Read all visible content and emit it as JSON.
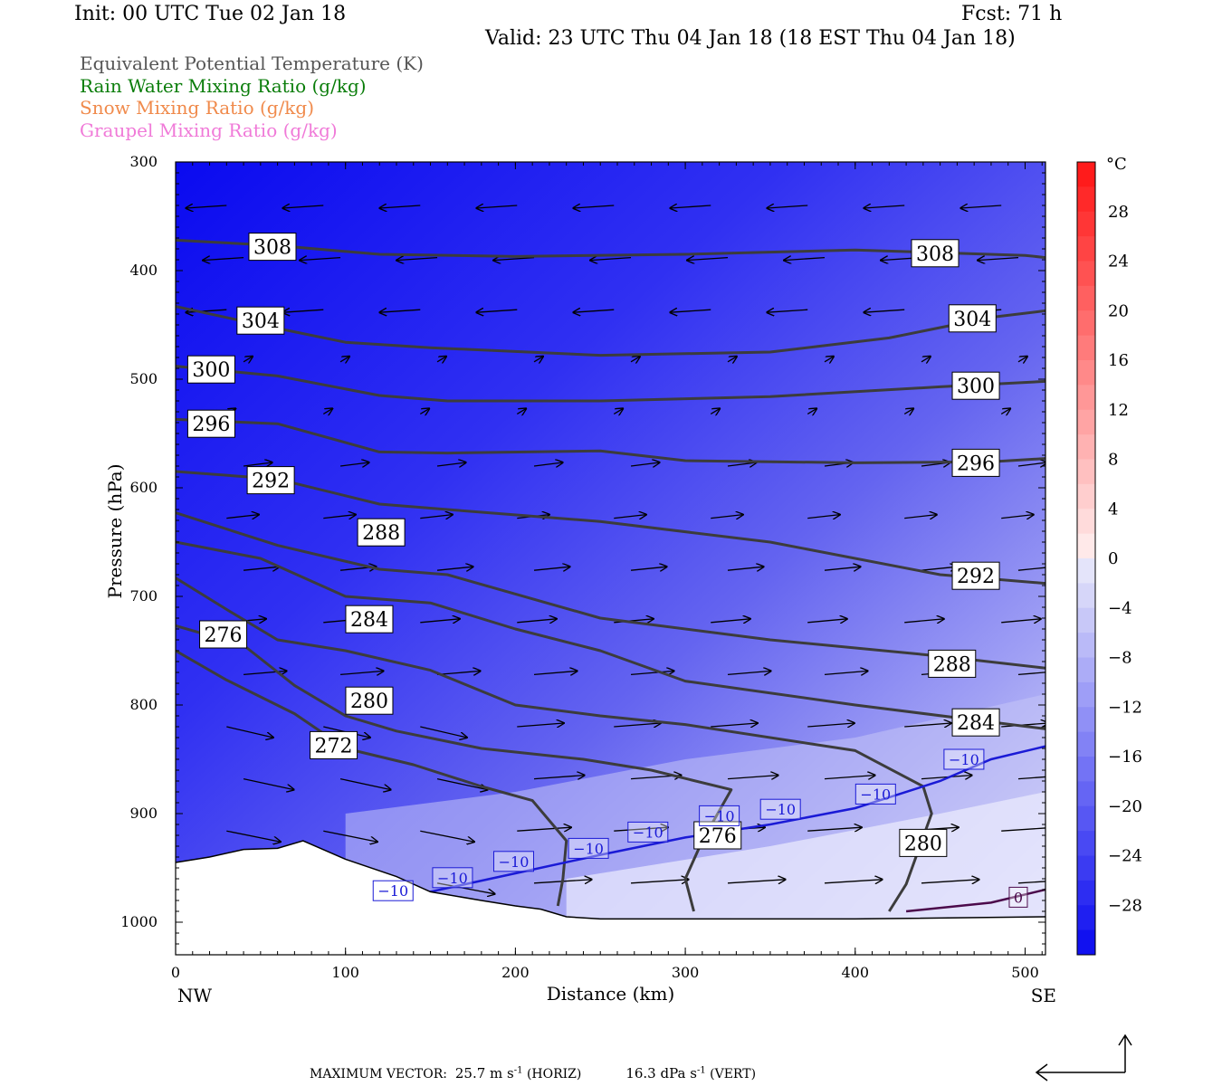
{
  "header": {
    "init": "Init: 00 UTC Tue 02 Jan 18",
    "fcst": "Fcst:   71 h",
    "valid": "Valid: 23 UTC Thu 04 Jan 18 (18 EST Thu 04 Jan 18)"
  },
  "legend": [
    {
      "label": "Equivalent Potential Temperature (K)",
      "color": "#555555"
    },
    {
      "label": "Rain Water Mixing Ratio (g/kg)",
      "color": "#0a7d0a"
    },
    {
      "label": "Snow Mixing Ratio (g/kg)",
      "color": "#f08a4b"
    },
    {
      "label": "Graupel Mixing Ratio (g/kg)",
      "color": "#f07ad8"
    }
  ],
  "chart_data": {
    "type": "heatmap",
    "xlabel": "Distance (km)",
    "ylabel": "Pressure (hPa)",
    "xlim": [
      0,
      512
    ],
    "ylim": [
      1030,
      300
    ],
    "x_ticks": [
      0,
      100,
      200,
      300,
      400,
      500
    ],
    "y_ticks": [
      300,
      400,
      500,
      600,
      700,
      800,
      900,
      1000
    ],
    "left_end_label": "NW",
    "right_end_label": "SE",
    "colorbar": {
      "unit": "°C",
      "ticks": [
        28,
        24,
        20,
        16,
        12,
        8,
        4,
        0,
        -4,
        -8,
        -12,
        -16,
        -20,
        -24,
        -28
      ],
      "range": [
        -32,
        32
      ]
    },
    "theta_e_contours": [
      {
        "value": 308,
        "points": [
          [
            0,
            372
          ],
          [
            60,
            377
          ],
          [
            120,
            385
          ],
          [
            200,
            387
          ],
          [
            300,
            385
          ],
          [
            400,
            381
          ],
          [
            500,
            386
          ],
          [
            512,
            388
          ]
        ]
      },
      {
        "value": 304,
        "points": [
          [
            0,
            433
          ],
          [
            50,
            450
          ],
          [
            100,
            466
          ],
          [
            150,
            471
          ],
          [
            250,
            478
          ],
          [
            350,
            475
          ],
          [
            420,
            462
          ],
          [
            480,
            443
          ],
          [
            512,
            437
          ]
        ]
      },
      {
        "value": 300,
        "points": [
          [
            0,
            488
          ],
          [
            60,
            497
          ],
          [
            120,
            515
          ],
          [
            160,
            520
          ],
          [
            250,
            520
          ],
          [
            350,
            516
          ],
          [
            450,
            507
          ],
          [
            512,
            502
          ]
        ]
      },
      {
        "value": 296,
        "points": [
          [
            0,
            537
          ],
          [
            60,
            541
          ],
          [
            120,
            567
          ],
          [
            160,
            568
          ],
          [
            250,
            566
          ],
          [
            300,
            575
          ],
          [
            400,
            577
          ],
          [
            480,
            576
          ],
          [
            512,
            573
          ]
        ]
      },
      {
        "value": 292,
        "points": [
          [
            0,
            585
          ],
          [
            60,
            592
          ],
          [
            120,
            615
          ],
          [
            160,
            620
          ],
          [
            250,
            631
          ],
          [
            350,
            650
          ],
          [
            450,
            680
          ],
          [
            512,
            688
          ]
        ]
      },
      {
        "value": 288,
        "points": [
          [
            0,
            623
          ],
          [
            60,
            653
          ],
          [
            120,
            675
          ],
          [
            160,
            680
          ],
          [
            250,
            720
          ],
          [
            350,
            740
          ],
          [
            450,
            755
          ],
          [
            512,
            766
          ]
        ]
      },
      {
        "value": 284,
        "points": [
          [
            0,
            650
          ],
          [
            50,
            665
          ],
          [
            100,
            700
          ],
          [
            150,
            706
          ],
          [
            200,
            730
          ],
          [
            250,
            750
          ],
          [
            300,
            778
          ],
          [
            400,
            800
          ],
          [
            512,
            822
          ]
        ]
      },
      {
        "value": 280,
        "points": [
          [
            0,
            683
          ],
          [
            30,
            712
          ],
          [
            60,
            740
          ],
          [
            100,
            750
          ],
          [
            150,
            768
          ],
          [
            200,
            800
          ],
          [
            250,
            810
          ],
          [
            300,
            818
          ],
          [
            400,
            842
          ],
          [
            440,
            875
          ],
          [
            445,
            900
          ],
          [
            430,
            965
          ],
          [
            420,
            990
          ]
        ]
      },
      {
        "value": 276,
        "points": [
          [
            0,
            727
          ],
          [
            40,
            745
          ],
          [
            70,
            782
          ],
          [
            100,
            810
          ],
          [
            130,
            824
          ],
          [
            180,
            840
          ],
          [
            240,
            850
          ],
          [
            280,
            860
          ],
          [
            327,
            878
          ],
          [
            310,
            925
          ],
          [
            300,
            960
          ],
          [
            305,
            990
          ]
        ]
      },
      {
        "value": 272,
        "points": [
          [
            0,
            750
          ],
          [
            30,
            777
          ],
          [
            70,
            808
          ],
          [
            100,
            840
          ],
          [
            140,
            855
          ],
          [
            180,
            875
          ],
          [
            210,
            888
          ],
          [
            230,
            925
          ],
          [
            228,
            960
          ],
          [
            225,
            985
          ]
        ]
      }
    ],
    "minus10C_isotherm": [
      [
        120,
        978
      ],
      [
        150,
        972
      ],
      [
        200,
        955
      ],
      [
        250,
        938
      ],
      [
        300,
        922
      ],
      [
        350,
        910
      ],
      [
        400,
        895
      ],
      [
        450,
        870
      ],
      [
        480,
        850
      ],
      [
        512,
        838
      ]
    ],
    "zero_C_isotherm": [
      [
        430,
        990
      ],
      [
        480,
        982
      ],
      [
        512,
        970
      ]
    ],
    "contour_labels": [
      {
        "text": "308",
        "x": 57,
        "p": 378
      },
      {
        "text": "308",
        "x": 447,
        "p": 384
      },
      {
        "text": "304",
        "x": 50,
        "p": 446
      },
      {
        "text": "304",
        "x": 469,
        "p": 444
      },
      {
        "text": "300",
        "x": 21,
        "p": 491
      },
      {
        "text": "300",
        "x": 471,
        "p": 506
      },
      {
        "text": "296",
        "x": 21,
        "p": 541
      },
      {
        "text": "296",
        "x": 471,
        "p": 577
      },
      {
        "text": "292",
        "x": 56,
        "p": 593
      },
      {
        "text": "292",
        "x": 471,
        "p": 681
      },
      {
        "text": "288",
        "x": 121,
        "p": 641
      },
      {
        "text": "288",
        "x": 457,
        "p": 762
      },
      {
        "text": "284",
        "x": 114,
        "p": 721
      },
      {
        "text": "284",
        "x": 471,
        "p": 816
      },
      {
        "text": "280",
        "x": 114,
        "p": 796
      },
      {
        "text": "280",
        "x": 440,
        "p": 927
      },
      {
        "text": "276",
        "x": 28,
        "p": 735
      },
      {
        "text": "276",
        "x": 319,
        "p": 920
      },
      {
        "text": "272",
        "x": 93,
        "p": 837
      }
    ],
    "isotherm_labels": [
      {
        "text": "−10",
        "x": 128,
        "p": 971
      },
      {
        "text": "−10",
        "x": 163,
        "p": 959
      },
      {
        "text": "−10",
        "x": 199,
        "p": 944
      },
      {
        "text": "−10",
        "x": 243,
        "p": 932
      },
      {
        "text": "−10",
        "x": 278,
        "p": 917
      },
      {
        "text": "−10",
        "x": 320,
        "p": 902
      },
      {
        "text": "−10",
        "x": 356,
        "p": 896
      },
      {
        "text": "−10",
        "x": 412,
        "p": 882
      },
      {
        "text": "−10",
        "x": 464,
        "p": 850
      },
      {
        "text": "0",
        "x": 496,
        "p": 977
      }
    ],
    "terrain_surface": [
      [
        0,
        945
      ],
      [
        20,
        940
      ],
      [
        40,
        933
      ],
      [
        60,
        932
      ],
      [
        75,
        925
      ],
      [
        100,
        942
      ],
      [
        130,
        958
      ],
      [
        150,
        972
      ],
      [
        180,
        980
      ],
      [
        200,
        985
      ],
      [
        215,
        988
      ],
      [
        230,
        995
      ],
      [
        250,
        997
      ],
      [
        300,
        997
      ],
      [
        400,
        997
      ],
      [
        512,
        995
      ]
    ]
  },
  "footer": {
    "max_vector_prefix": "MAXIMUM VECTOR:",
    "horiz": "25.7 m s",
    "horiz_sup": "-1",
    "horiz_suffix": "(HORIZ)",
    "vert": "16.3 dPa s",
    "vert_sup": "-1",
    "vert_suffix": "(VERT)"
  }
}
